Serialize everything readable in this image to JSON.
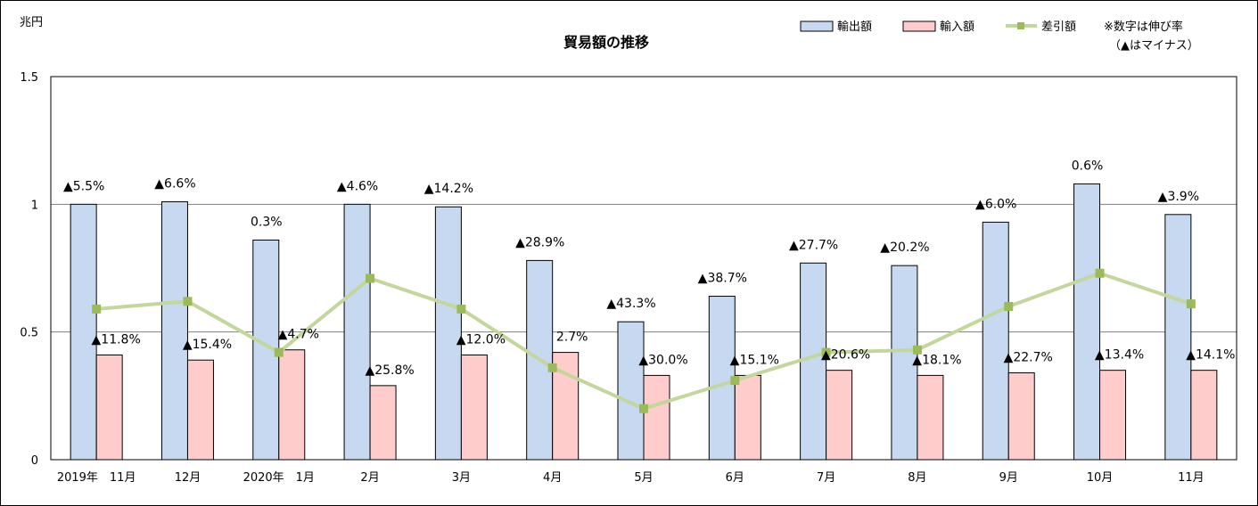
{
  "chart_data": {
    "type": "bar",
    "title": "貿易額の推移",
    "ylabel": "兆円",
    "ylim": [
      0,
      1.5
    ],
    "yticks": [
      0,
      0.5,
      1,
      1.5
    ],
    "ytick_labels": [
      "0",
      "0.5",
      "1",
      "1.5"
    ],
    "grid": true,
    "legend_position": "top-right",
    "note_line1": "※数字は伸び率",
    "note_line2": "（▲はマイナス）",
    "categories": [
      "2019年　11月",
      "12月",
      "2020年　1月",
      "2月",
      "3月",
      "4月",
      "5月",
      "6月",
      "7月",
      "8月",
      "9月",
      "10月",
      "11月"
    ],
    "series": [
      {
        "name": "輸出額",
        "kind": "bar",
        "color": "#c6d9f1",
        "values": [
          1.0,
          1.01,
          0.86,
          1.0,
          0.99,
          0.78,
          0.54,
          0.64,
          0.77,
          0.76,
          0.93,
          1.08,
          0.96
        ],
        "labels": [
          "▲5.5%",
          "▲6.6%",
          "0.3%",
          "▲4.6%",
          "▲14.2%",
          "▲28.9%",
          "▲43.3%",
          "▲38.7%",
          "▲27.7%",
          "▲20.2%",
          "▲6.0%",
          "0.6%",
          "▲3.9%"
        ]
      },
      {
        "name": "輸入額",
        "kind": "bar",
        "color": "#ffcccc",
        "values": [
          0.41,
          0.39,
          0.43,
          0.29,
          0.41,
          0.42,
          0.33,
          0.33,
          0.35,
          0.33,
          0.34,
          0.35,
          0.35
        ],
        "labels": [
          "▲11.8%",
          "▲15.4%",
          "▲4.7%",
          "▲25.8%",
          "▲12.0%",
          "2.7%",
          "▲30.0%",
          "▲15.1%",
          "▲20.6%",
          "▲18.1%",
          "▲22.7%",
          "▲13.4%",
          "▲14.1%"
        ]
      },
      {
        "name": "差引額",
        "kind": "line",
        "color": "#c3d69b",
        "marker_color": "#9bbb59",
        "values": [
          0.59,
          0.62,
          0.42,
          0.71,
          0.59,
          0.36,
          0.2,
          0.31,
          0.42,
          0.43,
          0.6,
          0.73,
          0.61
        ]
      }
    ]
  }
}
